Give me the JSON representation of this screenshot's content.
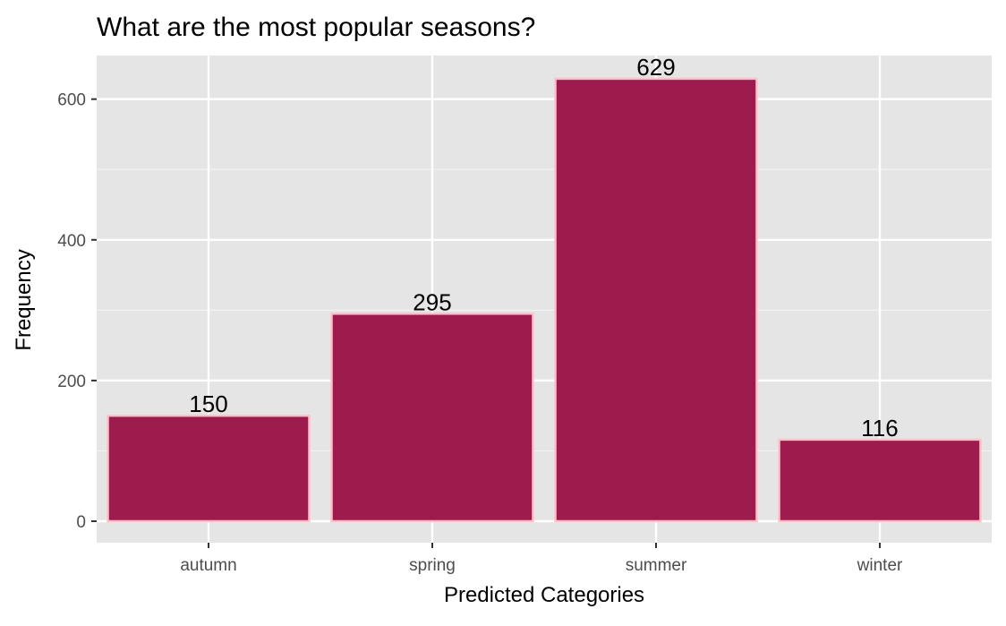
{
  "chart_data": {
    "type": "bar",
    "title": "What are the most popular seasons?",
    "xlabel": "Predicted Categories",
    "ylabel": "Frequency",
    "categories": [
      "autumn",
      "spring",
      "summer",
      "winter"
    ],
    "values": [
      150,
      295,
      629,
      116
    ],
    "data_labels": [
      "150",
      "295",
      "629",
      "116"
    ],
    "ylim": [
      0,
      660
    ],
    "y_ticks": [
      0,
      200,
      400,
      600
    ],
    "y_tick_labels": [
      "0",
      "200",
      "400",
      "600"
    ],
    "grid": true,
    "legend": "none",
    "colors": {
      "bar_fill": "#9e1c4d",
      "bar_stroke": "#ffc0cb",
      "panel_background": "#e5e5e5",
      "grid_major": "#ffffff",
      "grid_minor": "#f2f2f2"
    }
  }
}
